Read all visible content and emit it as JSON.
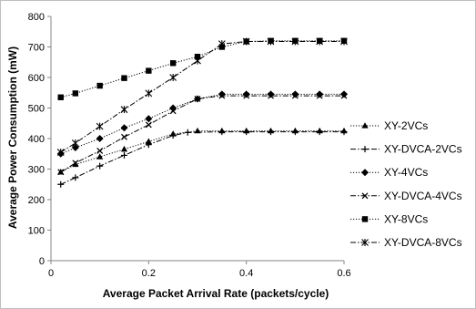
{
  "chart_data": {
    "type": "line",
    "xlabel": "Average Packet Arrival Rate (packets/cycle)",
    "ylabel": "Average Power Consumption (mW)",
    "xlim": [
      0,
      0.6
    ],
    "ylim": [
      0,
      800
    ],
    "xticks": [
      0,
      0.2,
      0.4,
      0.6
    ],
    "xtick_labels": [
      "0",
      "0.2",
      "0.4",
      "0.6"
    ],
    "yticks": [
      0,
      100,
      200,
      300,
      400,
      500,
      600,
      700,
      800
    ],
    "ytick_labels": [
      "0",
      "100",
      "200",
      "300",
      "400",
      "500",
      "600",
      "700",
      "800"
    ],
    "grid": false,
    "legend_position": "right",
    "series": [
      {
        "name": "XY-2VCs",
        "marker": "triangle",
        "line_style": "dotted",
        "x": [
          0.02,
          0.05,
          0.1,
          0.15,
          0.2,
          0.25,
          0.3,
          0.35,
          0.4,
          0.45,
          0.5,
          0.55,
          0.6
        ],
        "values": [
          290,
          315,
          340,
          365,
          390,
          415,
          425,
          425,
          425,
          425,
          425,
          425,
          425
        ]
      },
      {
        "name": "XY-DVCA-2VCs",
        "marker": "plus",
        "line_style": "dashdot",
        "x": [
          0.02,
          0.05,
          0.1,
          0.15,
          0.2,
          0.25,
          0.28,
          0.35,
          0.4,
          0.45,
          0.5,
          0.55,
          0.6
        ],
        "values": [
          250,
          272,
          310,
          345,
          380,
          410,
          420,
          422,
          422,
          422,
          422,
          422,
          422
        ]
      },
      {
        "name": "XY-4VCs",
        "marker": "diamond",
        "line_style": "dotted",
        "x": [
          0.02,
          0.05,
          0.1,
          0.15,
          0.2,
          0.25,
          0.3,
          0.35,
          0.4,
          0.45,
          0.5,
          0.55,
          0.6
        ],
        "values": [
          350,
          370,
          400,
          435,
          465,
          500,
          530,
          545,
          545,
          545,
          545,
          545,
          545
        ]
      },
      {
        "name": "XY-DVCA-4VCs",
        "marker": "cross",
        "line_style": "dashdot",
        "x": [
          0.02,
          0.05,
          0.1,
          0.15,
          0.2,
          0.25,
          0.3,
          0.35,
          0.4,
          0.45,
          0.5,
          0.55,
          0.6
        ],
        "values": [
          290,
          320,
          360,
          405,
          445,
          490,
          530,
          540,
          540,
          540,
          540,
          540,
          540
        ]
      },
      {
        "name": "XY-8VCs",
        "marker": "square",
        "line_style": "dotted",
        "x": [
          0.02,
          0.05,
          0.1,
          0.15,
          0.2,
          0.25,
          0.3,
          0.35,
          0.4,
          0.45,
          0.5,
          0.55,
          0.6
        ],
        "values": [
          535,
          548,
          573,
          598,
          622,
          647,
          668,
          700,
          718,
          720,
          720,
          720,
          720
        ]
      },
      {
        "name": "XY-DVCA-8VCs",
        "marker": "star",
        "line_style": "dashdot",
        "x": [
          0.02,
          0.05,
          0.1,
          0.15,
          0.2,
          0.25,
          0.3,
          0.35,
          0.4,
          0.45,
          0.5,
          0.55,
          0.6
        ],
        "values": [
          355,
          385,
          440,
          495,
          548,
          600,
          655,
          710,
          718,
          718,
          718,
          718,
          718
        ]
      }
    ]
  }
}
